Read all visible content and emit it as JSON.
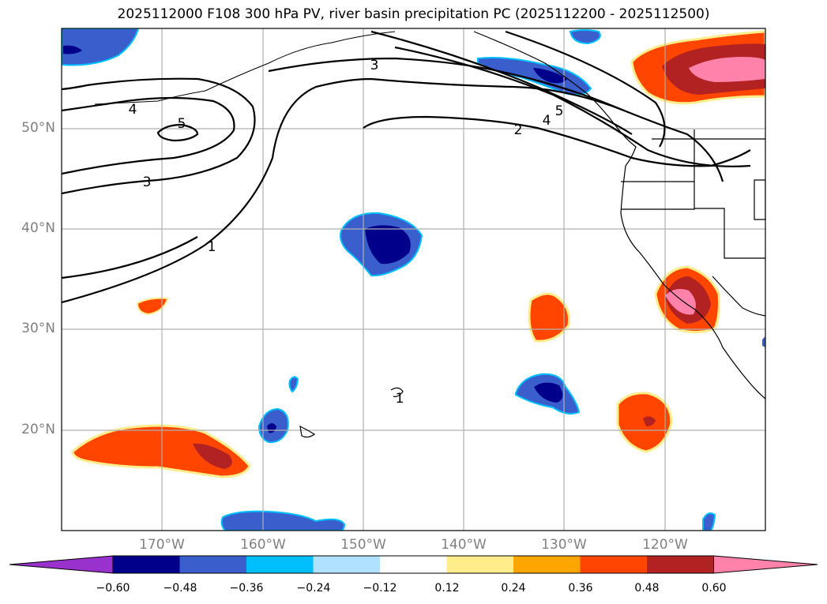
{
  "title": "2025112000 F108 300 hPa PV, river basin precipitation PC (2025112200 - 2025112500)",
  "lat_labels": [
    "50°N",
    "40°N",
    "30°N",
    "20°N"
  ],
  "lon_labels": [
    "170°W",
    "160°W",
    "150°W",
    "140°W",
    "130°W",
    "120°W"
  ],
  "pv_contour_labels": [
    "1",
    "2",
    "3",
    "4",
    "5",
    "3",
    "4",
    "5",
    "1"
  ],
  "colorbar": {
    "ticks": [
      "−0.60",
      "−0.48",
      "−0.36",
      "−0.24",
      "−0.12",
      "0.12",
      "0.24",
      "0.36",
      "0.48",
      "0.60"
    ],
    "colors": [
      "#9932cc",
      "#00008b",
      "#3a5fcd",
      "#00bfff",
      "#b0e2ff",
      "#ffffff",
      "#ffec8b",
      "#ffa500",
      "#ff4500",
      "#b22222",
      "#ff82ab"
    ]
  },
  "chart_data": {
    "type": "map-contour",
    "projection": "PlateCarree",
    "extent": {
      "lon": [
        -180,
        -110
      ],
      "lat": [
        10,
        60
      ]
    },
    "grid": true,
    "pv_contour_levels": [
      1,
      2,
      3,
      4,
      5
    ],
    "colorbar_levels": [
      -0.6,
      -0.48,
      -0.36,
      -0.24,
      -0.12,
      0.12,
      0.24,
      0.36,
      0.48,
      0.6
    ],
    "colorbar_extend": "both"
  }
}
